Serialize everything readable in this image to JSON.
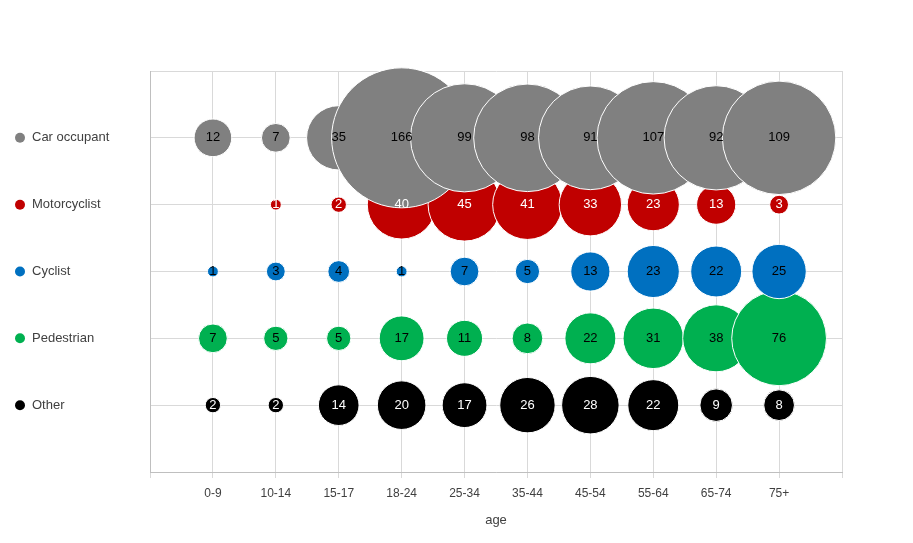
{
  "chart_data": {
    "type": "bubble",
    "x_label": "age",
    "categories": [
      "0-9",
      "10-14",
      "15-17",
      "18-24",
      "25-34",
      "35-44",
      "45-54",
      "55-64",
      "65-74",
      "75+"
    ],
    "series": [
      {
        "name": "Car occupant",
        "color": "#808080",
        "values": [
          12,
          7,
          35,
          166,
          99,
          98,
          91,
          107,
          92,
          109
        ]
      },
      {
        "name": "Motorcyclist",
        "color": "#c00000",
        "values": [
          null,
          1,
          2,
          40,
          45,
          41,
          33,
          23,
          13,
          3
        ]
      },
      {
        "name": "Cyclist",
        "color": "#0070c0",
        "values": [
          1,
          3,
          4,
          1,
          7,
          5,
          13,
          23,
          22,
          25
        ]
      },
      {
        "name": "Pedestrian",
        "color": "#00b050",
        "values": [
          7,
          5,
          5,
          17,
          11,
          8,
          22,
          31,
          38,
          76
        ]
      },
      {
        "name": "Other",
        "color": "#000000",
        "values": [
          2,
          2,
          14,
          20,
          17,
          26,
          28,
          22,
          9,
          8
        ]
      }
    ],
    "data_labels": true,
    "grid": true
  }
}
